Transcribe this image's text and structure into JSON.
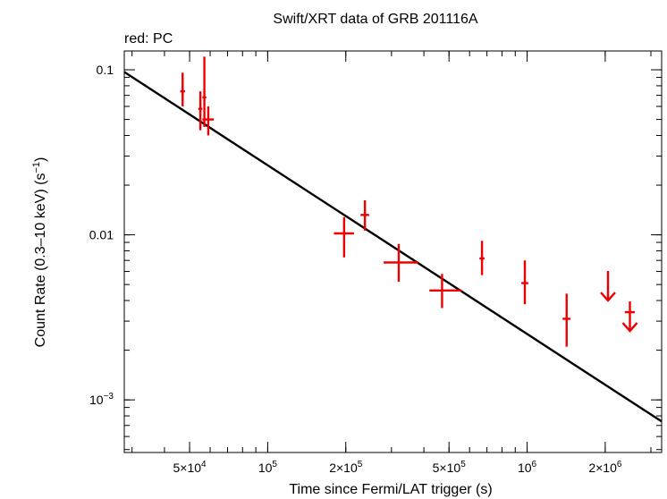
{
  "chart_data": {
    "type": "scatter",
    "title": "Swift/XRT data of GRB 201116A",
    "subtitle": "red: PC",
    "xlabel": "Time since Fermi/LAT trigger (s)",
    "ylabel_main": "Count Rate (0.3–10 keV) (s",
    "ylabel_sup": "−1",
    "ylabel_end": ")",
    "xscale": "log",
    "yscale": "log",
    "xlim": [
      28000,
      3300000
    ],
    "ylim": [
      0.00048,
      0.13
    ],
    "colors": {
      "data": "#ee0000",
      "model": "#000000",
      "axis": "#000000"
    },
    "x_ticks": [
      {
        "value": 50000,
        "mantissa": "5×",
        "base": "10",
        "exp": "4"
      },
      {
        "value": 100000,
        "mantissa": "",
        "base": "10",
        "exp": "5"
      },
      {
        "value": 200000,
        "mantissa": "2×",
        "base": "10",
        "exp": "5"
      },
      {
        "value": 500000,
        "mantissa": "5×",
        "base": "10",
        "exp": "5"
      },
      {
        "value": 1000000,
        "mantissa": "",
        "base": "10",
        "exp": "6"
      },
      {
        "value": 2000000,
        "mantissa": "2×",
        "base": "10",
        "exp": "6"
      }
    ],
    "y_ticks": [
      {
        "value": 0.1,
        "text": "0.1",
        "base": "",
        "exp": ""
      },
      {
        "value": 0.01,
        "text": "0.01",
        "base": "",
        "exp": ""
      },
      {
        "value": 0.001,
        "text": "",
        "base": "10",
        "exp": "−3"
      }
    ],
    "model_line": {
      "name": "power-law fit",
      "x": [
        28000,
        3300000
      ],
      "y": [
        0.097,
        0.00074
      ]
    },
    "series": [
      {
        "name": "PC",
        "points": [
          {
            "x": 47000,
            "y": 0.074,
            "xlo": 46000,
            "xhi": 48000,
            "ylo": 0.06,
            "yhi": 0.096
          },
          {
            "x": 55000,
            "y": 0.058,
            "xlo": 54000,
            "xhi": 56000,
            "ylo": 0.043,
            "yhi": 0.074
          },
          {
            "x": 57000,
            "y": 0.068,
            "xlo": 56000,
            "xhi": 58000,
            "ylo": 0.045,
            "yhi": 0.12
          },
          {
            "x": 59000,
            "y": 0.05,
            "xlo": 56000,
            "xhi": 62000,
            "ylo": 0.04,
            "yhi": 0.06
          },
          {
            "x": 197000,
            "y": 0.0102,
            "xlo": 180000,
            "xhi": 215000,
            "ylo": 0.0073,
            "yhi": 0.0128
          },
          {
            "x": 237000,
            "y": 0.0132,
            "xlo": 228000,
            "xhi": 246000,
            "ylo": 0.0106,
            "yhi": 0.0162
          },
          {
            "x": 320000,
            "y": 0.0068,
            "xlo": 280000,
            "xhi": 380000,
            "ylo": 0.0052,
            "yhi": 0.0088
          },
          {
            "x": 470000,
            "y": 0.0046,
            "xlo": 420000,
            "xhi": 560000,
            "ylo": 0.0036,
            "yhi": 0.0058
          },
          {
            "x": 670000,
            "y": 0.0072,
            "xlo": 655000,
            "xhi": 685000,
            "ylo": 0.0057,
            "yhi": 0.0092
          },
          {
            "x": 980000,
            "y": 0.0051,
            "xlo": 950000,
            "xhi": 1010000,
            "ylo": 0.0038,
            "yhi": 0.007
          },
          {
            "x": 1420000,
            "y": 0.0031,
            "xlo": 1370000,
            "xhi": 1470000,
            "ylo": 0.0021,
            "yhi": 0.0044
          }
        ],
        "upper_limits": [
          {
            "x": 2050000,
            "y": 0.0052
          },
          {
            "x": 2490000,
            "y": 0.0034,
            "xlo": 2380000,
            "xhi": 2600000
          }
        ]
      }
    ]
  }
}
